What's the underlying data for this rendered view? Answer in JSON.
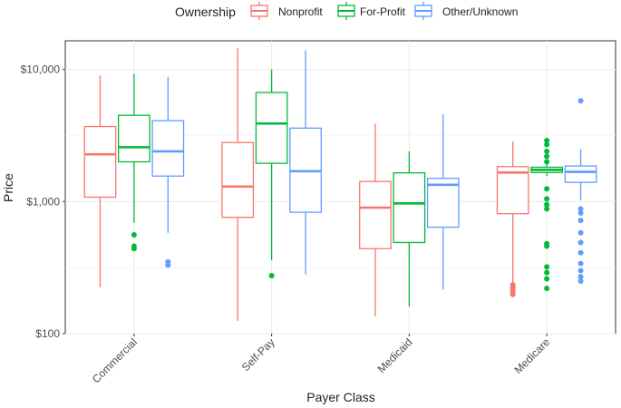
{
  "chart_data": {
    "type": "boxplot",
    "title": "",
    "xlabel": "Payer Class",
    "ylabel": "Price",
    "y_scale": "log10",
    "ylim": [
      100,
      16500
    ],
    "y_ticks": [
      {
        "value": 100,
        "label": "$100"
      },
      {
        "value": 1000,
        "label": "$1,000"
      },
      {
        "value": 10000,
        "label": "$10,000"
      }
    ],
    "grid": true,
    "legend": {
      "title": "Ownership",
      "position": "top"
    },
    "categories": [
      "Commercial",
      "Self-Pay",
      "Medicaid",
      "Medicare"
    ],
    "series": [
      {
        "name": "Nonprofit",
        "color": "#F8766D",
        "boxes": [
          {
            "whisker_low": 225,
            "q1": 1080,
            "median": 2280,
            "q3": 3700,
            "whisker_high": 9000,
            "outliers": []
          },
          {
            "whisker_low": 125,
            "q1": 760,
            "median": 1300,
            "q3": 2800,
            "whisker_high": 14500,
            "outliers": []
          },
          {
            "whisker_low": 135,
            "q1": 440,
            "median": 900,
            "q3": 1420,
            "whisker_high": 3900,
            "outliers": []
          },
          {
            "whisker_low": 245,
            "q1": 810,
            "median": 1660,
            "q3": 1840,
            "whisker_high": 2850,
            "outliers": [
              235,
              225,
              215,
              205,
              198
            ]
          }
        ]
      },
      {
        "name": "For-Profit",
        "color": "#00BA38",
        "boxes": [
          {
            "whisker_low": 690,
            "q1": 2000,
            "median": 2580,
            "q3": 4500,
            "whisker_high": 9300,
            "outliers": [
              560,
              460,
              440
            ]
          },
          {
            "whisker_low": 360,
            "q1": 1950,
            "median": 3900,
            "q3": 6700,
            "whisker_high": 10000,
            "outliers": [
              275
            ]
          },
          {
            "whisker_low": 160,
            "q1": 490,
            "median": 970,
            "q3": 1650,
            "whisker_high": 2400,
            "outliers": []
          },
          {
            "whisker_low": 1560,
            "q1": 1660,
            "median": 1740,
            "q3": 1820,
            "whisker_high": 1960,
            "outliers": [
              2900,
              2700,
              2400,
              2200,
              2000,
              1250,
              1050,
              950,
              880,
              480,
              460,
              320,
              290,
              260,
              220
            ]
          }
        ]
      },
      {
        "name": "Other/Unknown",
        "color": "#619CFF",
        "boxes": [
          {
            "whisker_low": 580,
            "q1": 1560,
            "median": 2400,
            "q3": 4100,
            "whisker_high": 8800,
            "outliers": [
              350,
              330
            ]
          },
          {
            "whisker_low": 280,
            "q1": 830,
            "median": 1700,
            "q3": 3600,
            "whisker_high": 14000,
            "outliers": []
          },
          {
            "whisker_low": 215,
            "q1": 640,
            "median": 1340,
            "q3": 1500,
            "whisker_high": 4600,
            "outliers": []
          },
          {
            "whisker_low": 1020,
            "q1": 1400,
            "median": 1680,
            "q3": 1860,
            "whisker_high": 2500,
            "outliers": [
              5800,
              880,
              820,
              720,
              580,
              490,
              410,
              340,
              300,
              270,
              250
            ]
          }
        ]
      }
    ]
  }
}
